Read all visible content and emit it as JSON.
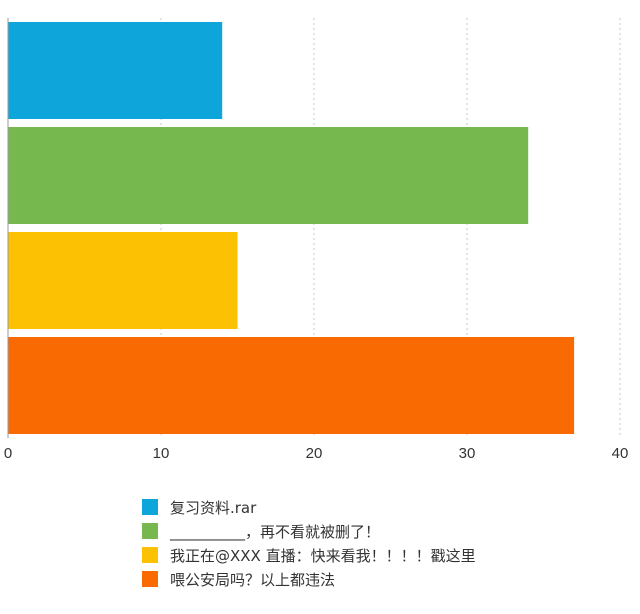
{
  "chart_data": {
    "type": "bar",
    "orientation": "horizontal",
    "series": [
      {
        "name": "复习资料.rar",
        "value": 14,
        "color": "#0ea5db"
      },
      {
        "name": "__________，再不看就被删了！",
        "value": 34,
        "color": "#76b84e"
      },
      {
        "name": "我正在@XXX 直播：快来看我！！！！戳这里",
        "value": 15,
        "color": "#fbc102"
      },
      {
        "name": "喂公安局吗？以上都违法",
        "value": 37,
        "color": "#fa6a03"
      }
    ],
    "xlim": [
      0,
      40
    ],
    "xticks": [
      "0",
      "10",
      "20",
      "30",
      "40"
    ],
    "grid": true,
    "legend_position": "bottom"
  }
}
